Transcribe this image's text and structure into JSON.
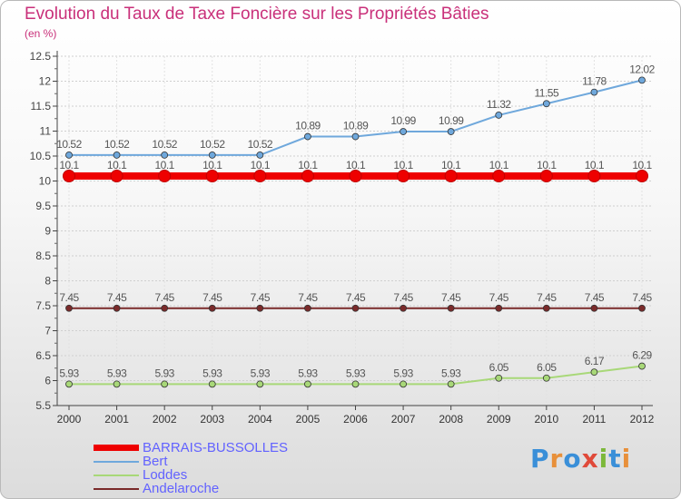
{
  "header": {
    "title": "Evolution du Taux de Taxe Foncière sur les Propriétés Bâties",
    "unit": "(en %)"
  },
  "logo": {
    "text": "Proxiti",
    "colors": [
      "#3a8fd8",
      "#e8903a",
      "#3a8fd8",
      "#e04a3a",
      "#7cb83a",
      "#3a8fd8",
      "#e8903a"
    ]
  },
  "chart_data": {
    "type": "line",
    "title": "Evolution du Taux de Taxe Foncière sur les Propriétés Bâties",
    "ylabel": "(en %)",
    "xlabel": "",
    "ylim": [
      5.5,
      12.5
    ],
    "yticks": [
      "5.5",
      "6",
      "6.5",
      "7",
      "7.5",
      "8",
      "8.5",
      "9",
      "9.5",
      "10",
      "10.5",
      "11",
      "11.5",
      "12",
      "12.5"
    ],
    "categories": [
      "2000",
      "2001",
      "2002",
      "2003",
      "2004",
      "2005",
      "2006",
      "2007",
      "2008",
      "2009",
      "2010",
      "2011",
      "2012"
    ],
    "legend_position": "bottom-left",
    "series": [
      {
        "name": "BARRAIS-BUSSOLLES",
        "color": "#ee0000",
        "values": [
          10.1,
          10.1,
          10.1,
          10.1,
          10.1,
          10.1,
          10.1,
          10.1,
          10.1,
          10.1,
          10.1,
          10.1,
          10.1
        ],
        "labels": [
          "10.1",
          "10.1",
          "10.1",
          "10.1",
          "10.1",
          "10.1",
          "10.1",
          "10.1",
          "10.1",
          "10.1",
          "10.1",
          "10.1",
          "10.1"
        ]
      },
      {
        "name": "Bert",
        "color": "#6fa8dc",
        "values": [
          10.52,
          10.52,
          10.52,
          10.52,
          10.52,
          10.89,
          10.89,
          10.99,
          10.99,
          11.32,
          11.55,
          11.78,
          12.02
        ],
        "labels": [
          "10.52",
          "10.52",
          "10.52",
          "10.52",
          "10.52",
          "10.89",
          "10.89",
          "10.99",
          "10.99",
          "11.32",
          "11.55",
          "11.78",
          "12.02"
        ]
      },
      {
        "name": "Loddes",
        "color": "#a8d878",
        "values": [
          5.93,
          5.93,
          5.93,
          5.93,
          5.93,
          5.93,
          5.93,
          5.93,
          5.93,
          6.05,
          6.05,
          6.17,
          6.29
        ],
        "labels": [
          "5.93",
          "5.93",
          "5.93",
          "5.93",
          "5.93",
          "5.93",
          "5.93",
          "5.93",
          "5.93",
          "6.05",
          "6.05",
          "6.17",
          "6.29"
        ]
      },
      {
        "name": "Andelaroche",
        "color": "#7a2a2a",
        "values": [
          7.45,
          7.45,
          7.45,
          7.45,
          7.45,
          7.45,
          7.45,
          7.45,
          7.45,
          7.45,
          7.45,
          7.45,
          7.45
        ],
        "labels": [
          "7.45",
          "7.45",
          "7.45",
          "7.45",
          "7.45",
          "7.45",
          "7.45",
          "7.45",
          "7.45",
          "7.45",
          "7.45",
          "7.45",
          "7.45"
        ]
      }
    ]
  }
}
